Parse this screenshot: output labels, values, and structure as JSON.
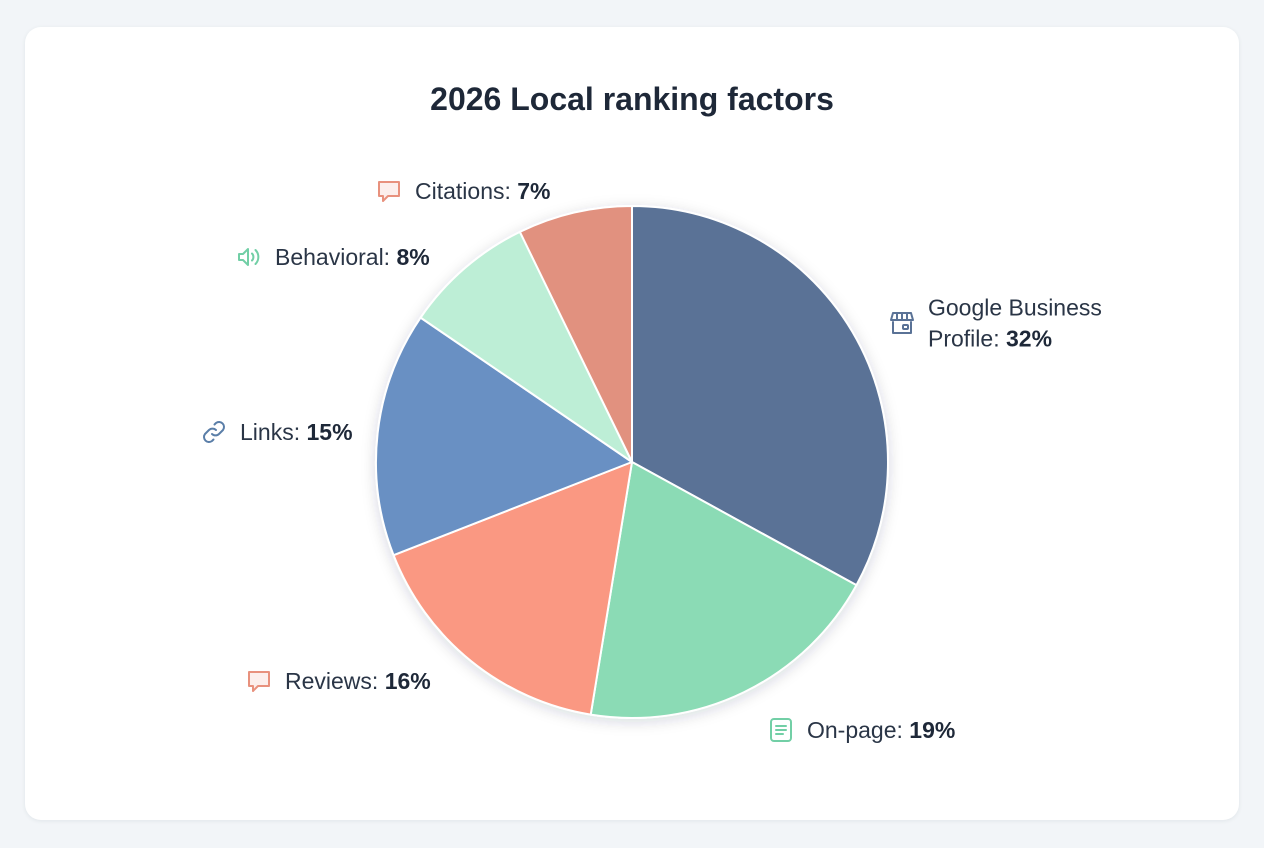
{
  "chart_data": {
    "type": "pie",
    "title": "2026 Local ranking factors",
    "slices": [
      {
        "label_lines": [
          "Google Business",
          "Profile: "
        ],
        "value": 32,
        "value_text": "32%",
        "color": "#5a7296",
        "icon": "storefront-icon",
        "icon_color": "#5a7296"
      },
      {
        "label_lines": [
          "On-page: "
        ],
        "value": 19,
        "value_text": "19%",
        "color": "#8bdbb5",
        "icon": "document-icon",
        "icon_color": "#72cfa6"
      },
      {
        "label_lines": [
          "Reviews: "
        ],
        "value": 16,
        "value_text": "16%",
        "color": "#fa9882",
        "icon": "speech-bubble-icon",
        "icon_color": "#e8917d"
      },
      {
        "label_lines": [
          "Links: "
        ],
        "value": 15,
        "value_text": "15%",
        "color": "#6990c3",
        "icon": "link-icon",
        "icon_color": "#5a7ea8"
      },
      {
        "label_lines": [
          "Behavioral: "
        ],
        "value": 8,
        "value_text": "8%",
        "color": "#bdeed6",
        "icon": "speaker-icon",
        "icon_color": "#72cfa6"
      },
      {
        "label_lines": [
          "Citations: "
        ],
        "value": 7,
        "value_text": "7%",
        "color": "#e1917f",
        "icon": "speech-bubble-icon",
        "icon_color": "#e8917d"
      }
    ],
    "legend": "none",
    "grid": false
  }
}
